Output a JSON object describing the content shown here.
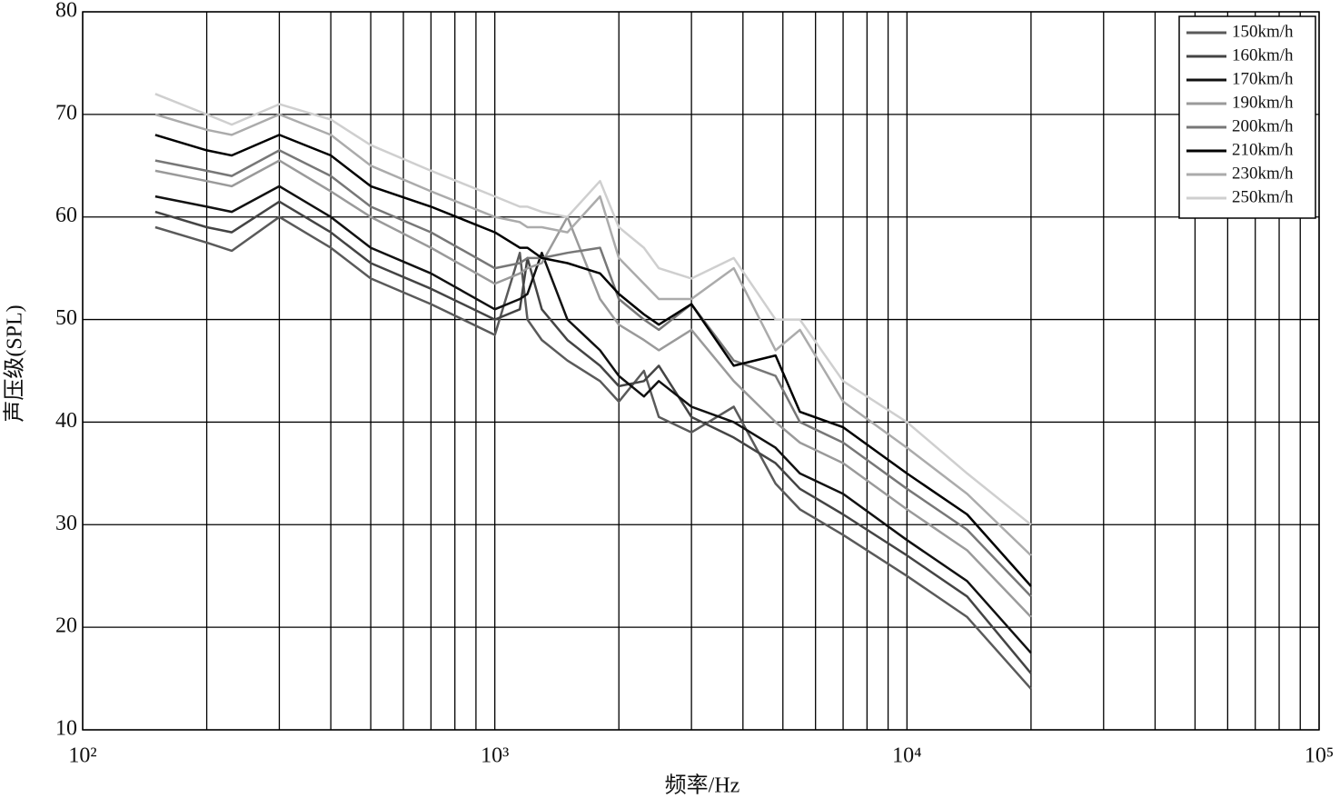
{
  "chart_data": {
    "type": "line",
    "x_label": "频率/Hz",
    "y_label": "声压级(SPL)",
    "x": [
      150,
      200,
      230,
      300,
      400,
      500,
      700,
      1000,
      1150,
      1200,
      1300,
      1500,
      1800,
      2000,
      2300,
      2500,
      3000,
      3800,
      4800,
      5500,
      7000,
      10000,
      14000,
      20000
    ],
    "series": [
      {
        "name": "150km/h",
        "color": "#5a5a5a",
        "values": [
          59,
          57.5,
          56.7,
          60,
          57,
          54,
          51.5,
          48.5,
          56.5,
          50,
          48,
          46,
          44,
          42,
          45,
          40.5,
          39,
          41.5,
          34,
          31.5,
          29,
          25,
          21,
          14
        ]
      },
      {
        "name": "160km/h",
        "color": "#444444",
        "values": [
          60.5,
          59,
          58.5,
          61.5,
          58.5,
          55.5,
          53,
          50,
          51,
          56,
          51,
          48,
          45.5,
          43.5,
          44,
          45.5,
          40.5,
          38.5,
          36,
          33.5,
          31,
          27,
          23,
          15.5
        ]
      },
      {
        "name": "170km/h",
        "color": "#111111",
        "values": [
          62,
          61,
          60.5,
          63,
          60,
          57,
          54.5,
          51,
          52,
          52.5,
          56.5,
          50,
          47,
          44.5,
          42.5,
          44,
          41.5,
          40,
          37.5,
          35,
          33,
          28.5,
          24.5,
          17.5
        ]
      },
      {
        "name": "190km/h",
        "color": "#9a9a9a",
        "values": [
          64.5,
          63.5,
          63,
          65.5,
          62.5,
          60,
          57,
          53.5,
          54.5,
          55,
          55.5,
          60,
          52,
          49.5,
          48,
          47,
          49,
          44,
          40,
          38,
          36,
          31.5,
          27.5,
          21
        ]
      },
      {
        "name": "200km/h",
        "color": "#777777",
        "values": [
          65.5,
          64.5,
          64,
          66.5,
          64,
          61,
          58.5,
          55,
          55.5,
          56,
          56,
          56.5,
          57,
          52,
          50,
          49,
          51.5,
          46,
          44.5,
          40,
          38,
          33.5,
          29.5,
          23
        ]
      },
      {
        "name": "210km/h",
        "color": "#000000",
        "values": [
          68,
          66.5,
          66,
          68,
          66,
          63,
          61,
          58.5,
          57,
          57,
          56,
          55.5,
          54.5,
          52.5,
          50.5,
          49.5,
          51.5,
          45.5,
          46.5,
          41,
          39.5,
          35,
          31,
          24
        ]
      },
      {
        "name": "230km/h",
        "color": "#ababab",
        "values": [
          70,
          68.5,
          68,
          70,
          68,
          65,
          62.5,
          60,
          59.5,
          59,
          59,
          58.5,
          62,
          56,
          53.5,
          52,
          52,
          55,
          47,
          49,
          42,
          37.5,
          33,
          27
        ]
      },
      {
        "name": "250km/h",
        "color": "#cfcfcf",
        "values": [
          72,
          70,
          69,
          71,
          69.5,
          67,
          64.5,
          62,
          61,
          61,
          60.5,
          60,
          63.5,
          59,
          57,
          55,
          54,
          56,
          50,
          50,
          44,
          40,
          35,
          30
        ]
      }
    ],
    "xscale": "log",
    "xlim": [
      100,
      100000
    ],
    "xticks": [
      {
        "value": 100,
        "label": "10²"
      },
      {
        "value": 1000,
        "label": "10³"
      },
      {
        "value": 10000,
        "label": "10⁴"
      },
      {
        "value": 100000,
        "label": "10⁵"
      }
    ],
    "x_minor_gridlines": [
      200,
      300,
      400,
      500,
      600,
      700,
      800,
      900,
      2000,
      3000,
      4000,
      5000,
      6000,
      7000,
      8000,
      9000,
      20000,
      30000,
      40000,
      50000,
      60000,
      70000,
      80000,
      90000
    ],
    "ylim": [
      10,
      80
    ],
    "yticks": [
      10,
      20,
      30,
      40,
      50,
      60,
      70,
      80
    ],
    "grid": true,
    "legend": "upper right"
  }
}
